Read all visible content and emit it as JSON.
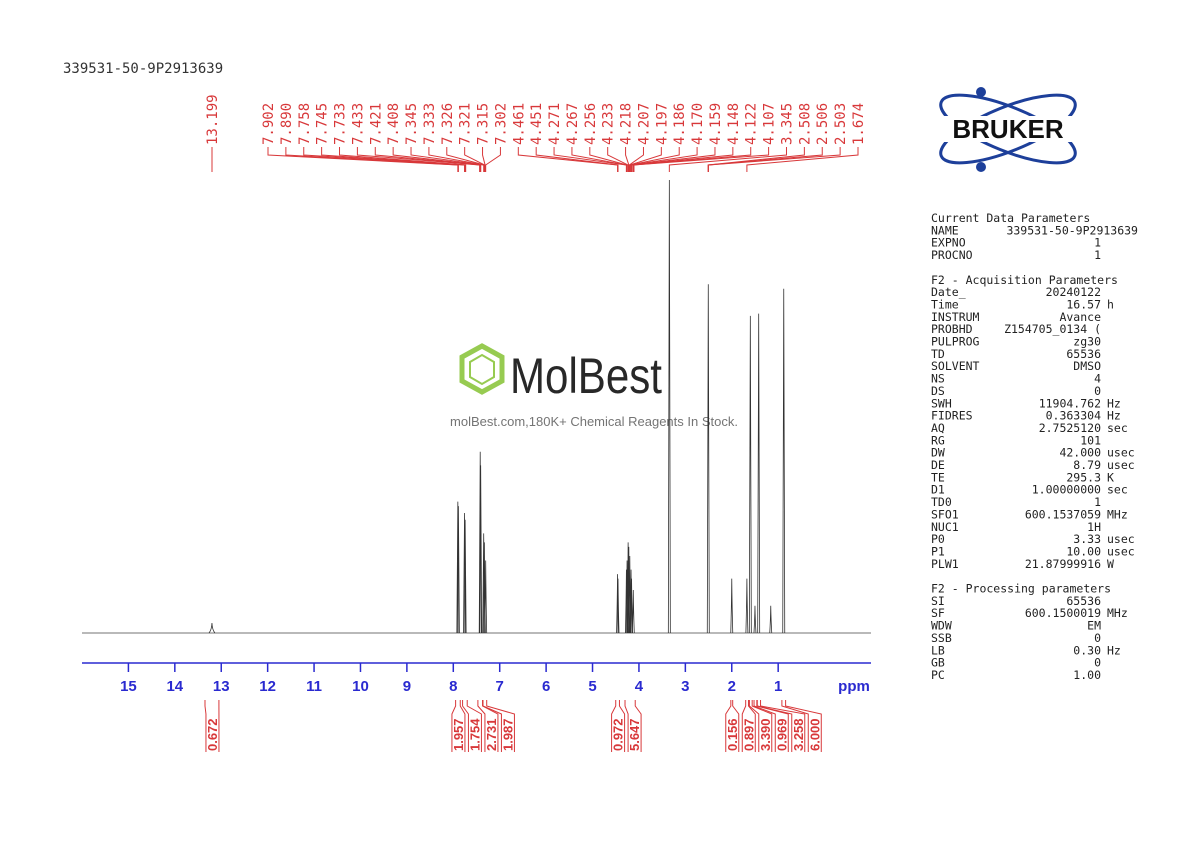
{
  "chart_data": {
    "type": "nmr",
    "sample_name": "339531-50-9P2913639",
    "x_label": "ppm",
    "xlim": [
      16,
      -1
    ],
    "xticks": [
      15,
      14,
      13,
      12,
      11,
      10,
      9,
      8,
      7,
      6,
      5,
      4,
      3,
      2,
      1
    ],
    "ylim": [
      0,
      100
    ],
    "peaks": {
      "x": [
        13.2,
        7.902,
        7.89,
        7.758,
        7.745,
        7.42,
        7.41,
        7.345,
        7.33,
        7.302,
        4.461,
        4.451,
        4.27,
        4.256,
        4.233,
        4.218,
        4.197,
        4.17,
        4.159,
        4.122,
        3.345,
        2.506,
        2.0,
        1.674,
        1.6,
        1.5,
        1.42,
        1.16,
        0.88
      ],
      "values": [
        2.2,
        29,
        28,
        26.5,
        25,
        40,
        37,
        22,
        20,
        16,
        13,
        12,
        14,
        16,
        20,
        19,
        17,
        14,
        12,
        9.5,
        100,
        77,
        12,
        12,
        70,
        6,
        70.5,
        6,
        76
      ]
    },
    "peak_labels": [
      13.199,
      7.902,
      {
        "value": 7.89,
        "label": "7.890"
      },
      7.758,
      7.745,
      7.733,
      7.433,
      7.421,
      7.408,
      7.345,
      7.333,
      7.326,
      7.321,
      7.315,
      7.302,
      4.461,
      4.451,
      4.271,
      4.267,
      4.256,
      4.233,
      4.218,
      4.207,
      4.197,
      4.186,
      {
        "value": 4.17,
        "label": "4.170"
      },
      4.159,
      4.148,
      4.122,
      4.107,
      3.345,
      2.508,
      2.506,
      2.503,
      1.674
    ],
    "integrals": [
      {
        "value": 0.672,
        "range": [
          13.35,
          13.05
        ]
      },
      {
        "value": 1.957,
        "range": [
          7.95,
          7.85
        ]
      },
      {
        "value": 1.754,
        "range": [
          7.8,
          7.7
        ]
      },
      {
        "value": 2.731,
        "range": [
          7.47,
          7.37
        ]
      },
      {
        "value": 1.987,
        "range": [
          7.36,
          7.28
        ]
      },
      {
        "value": 0.972,
        "range": [
          4.5,
          4.42
        ]
      },
      {
        "value": 5.647,
        "range": [
          4.3,
          4.08
        ]
      },
      {
        "value": 0.156,
        "range": [
          2.02,
          1.98
        ]
      },
      {
        "value": 0.897,
        "range": [
          1.7,
          1.64
        ]
      },
      {
        "value": 3.39,
        "label": "3.390",
        "range": [
          1.62,
          1.56
        ]
      },
      {
        "value": 0.969,
        "range": [
          1.52,
          1.46
        ]
      },
      {
        "value": 3.258,
        "range": [
          1.45,
          1.38
        ]
      },
      {
        "value": 6,
        "label": "6.000",
        "range": [
          0.92,
          0.84
        ]
      }
    ]
  },
  "logo": {
    "text": "BRUKER"
  },
  "watermark": {
    "brand": "MolBest",
    "tagline": "molBest.com,180K+ Chemical Reagents In Stock."
  },
  "parameters": [
    {
      "title": "Current Data Parameters",
      "rows": [
        [
          "NAME",
          "339531-50-9P2913639"
        ],
        [
          "EXPNO",
          "1"
        ],
        [
          "PROCNO",
          "1"
        ]
      ]
    },
    {
      "title": "F2 - Acquisition Parameters",
      "rows": [
        [
          "Date_",
          "20240122"
        ],
        [
          "Time",
          "16.57",
          "h"
        ],
        [
          "INSTRUM",
          "Avance"
        ],
        [
          "PROBHD",
          "Z154705_0134 ("
        ],
        [
          "PULPROG",
          "zg30"
        ],
        [
          "TD",
          "65536"
        ],
        [
          "SOLVENT",
          "DMSO"
        ],
        [
          "NS",
          "4"
        ],
        [
          "DS",
          "0"
        ],
        [
          "SWH",
          "11904.762",
          "Hz"
        ],
        [
          "FIDRES",
          "0.363304",
          "Hz"
        ],
        [
          "AQ",
          "2.7525120",
          "sec"
        ],
        [
          "RG",
          "101"
        ],
        [
          "DW",
          "42.000",
          "usec"
        ],
        [
          "DE",
          "8.79",
          "usec"
        ],
        [
          "TE",
          "295.3",
          "K"
        ],
        [
          "D1",
          "1.00000000",
          "sec"
        ],
        [
          "TD0",
          "1"
        ],
        [
          "SFO1",
          "600.1537059",
          "MHz"
        ],
        [
          "NUC1",
          "1H"
        ],
        [
          "P0",
          "3.33",
          "usec"
        ],
        [
          "P1",
          "10.00",
          "usec"
        ],
        [
          "PLW1",
          "21.87999916",
          "W"
        ]
      ]
    },
    {
      "title": "F2 - Processing parameters",
      "rows": [
        [
          "SI",
          "65536"
        ],
        [
          "SF",
          "600.1500019",
          "MHz"
        ],
        [
          "WDW",
          "EM"
        ],
        [
          "SSB",
          "0"
        ],
        [
          "LB",
          "0.30",
          "Hz"
        ],
        [
          "GB",
          "0"
        ],
        [
          "PC",
          "1.00"
        ]
      ]
    }
  ]
}
